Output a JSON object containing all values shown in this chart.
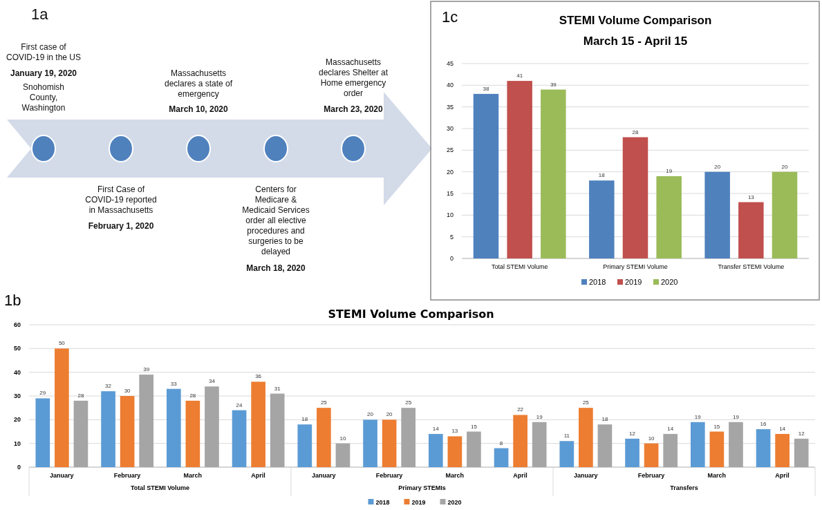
{
  "chart_data": [
    {
      "type": "other",
      "annotations": [
        "1a",
        "First case of COVID-19 in the US",
        "January 19, 2020",
        "Snohomish County, Washington",
        "First Case of COVID-19 reported in Massachusetts",
        "February 1, 2020",
        "Massachusetts declares a state of emergency",
        "March 10, 2020",
        "Centers for Medicare & Medicaid Services order all elective procedures and surgeries to be delayed",
        "March 18, 2020",
        "Massachusetts declares Shelter at Home emergency order",
        "March 23, 2020"
      ]
    },
    {
      "type": "bar",
      "title": "STEMI Volume Comparison",
      "subtitle": "March 15 - April 15",
      "annotations": [
        "1c"
      ],
      "categories": [
        "Total STEMI Volume",
        "Primary STEMI Volume",
        "Transfer STEMI Volume"
      ],
      "series": [
        {
          "name": "2018",
          "color": "#4f81bd",
          "values": [
            38,
            18,
            20
          ]
        },
        {
          "name": "2019",
          "color": "#c0504d",
          "values": [
            41,
            28,
            13
          ]
        },
        {
          "name": "2020",
          "color": "#9bbb59",
          "values": [
            39,
            19,
            20
          ]
        }
      ],
      "ylim": [
        0,
        45
      ],
      "yticks": [
        0,
        5,
        10,
        15,
        20,
        25,
        30,
        35,
        40,
        45
      ],
      "grid": "y",
      "legend": "bottom",
      "data_labels": true
    },
    {
      "type": "bar",
      "title": "STEMI Volume Comparison",
      "annotations": [
        "1b",
        "Total STEMI Volume",
        "Primary STEMIs",
        "Transfers"
      ],
      "categories": [
        "January",
        "February",
        "March",
        "April",
        "January",
        "February",
        "March",
        "April",
        "January",
        "February",
        "March",
        "April"
      ],
      "series": [
        {
          "name": "2018",
          "color": "#5b9bd5",
          "values": [
            29,
            32,
            33,
            24,
            18,
            20,
            14,
            8,
            11,
            12,
            19,
            16
          ]
        },
        {
          "name": "2019",
          "color": "#ed7d31",
          "values": [
            50,
            30,
            28,
            36,
            25,
            20,
            13,
            22,
            25,
            10,
            15,
            14
          ]
        },
        {
          "name": "2020",
          "color": "#a5a5a5",
          "values": [
            28,
            39,
            34,
            31,
            10,
            25,
            15,
            19,
            18,
            14,
            19,
            12
          ]
        }
      ],
      "ylim": [
        0,
        60
      ],
      "yticks": [
        0,
        10,
        20,
        30,
        40,
        50,
        60
      ],
      "grid": "y",
      "legend": "bottom",
      "data_labels": true
    }
  ]
}
